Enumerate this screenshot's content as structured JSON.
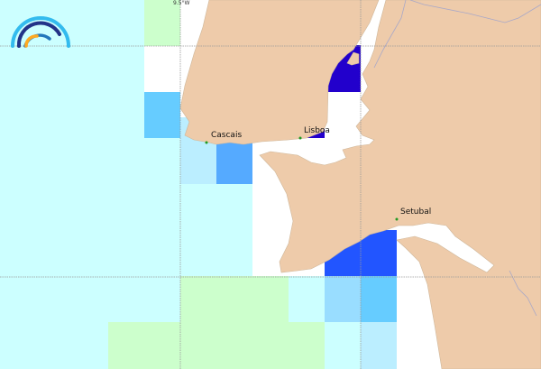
{
  "map": {
    "grid_labels": {
      "lon": "9.5°W"
    },
    "cities": [
      {
        "name": "Cascais"
      },
      {
        "name": "Lisboa"
      },
      {
        "name": "Setubal"
      }
    ],
    "colors": {
      "land": "#eecbaa",
      "sea": "#ffffff",
      "level_1": "#ccffff",
      "level_green": "#ccffcc",
      "level_2": "#bbeeff",
      "level_3": "#99ddff",
      "level_4": "#66ccff",
      "level_5": "#55aaff",
      "level_6": "#2255ff",
      "level_7": "#2200cc",
      "city_dot": "#229922"
    },
    "logo_icon": "rainbow-arcs-logo"
  }
}
